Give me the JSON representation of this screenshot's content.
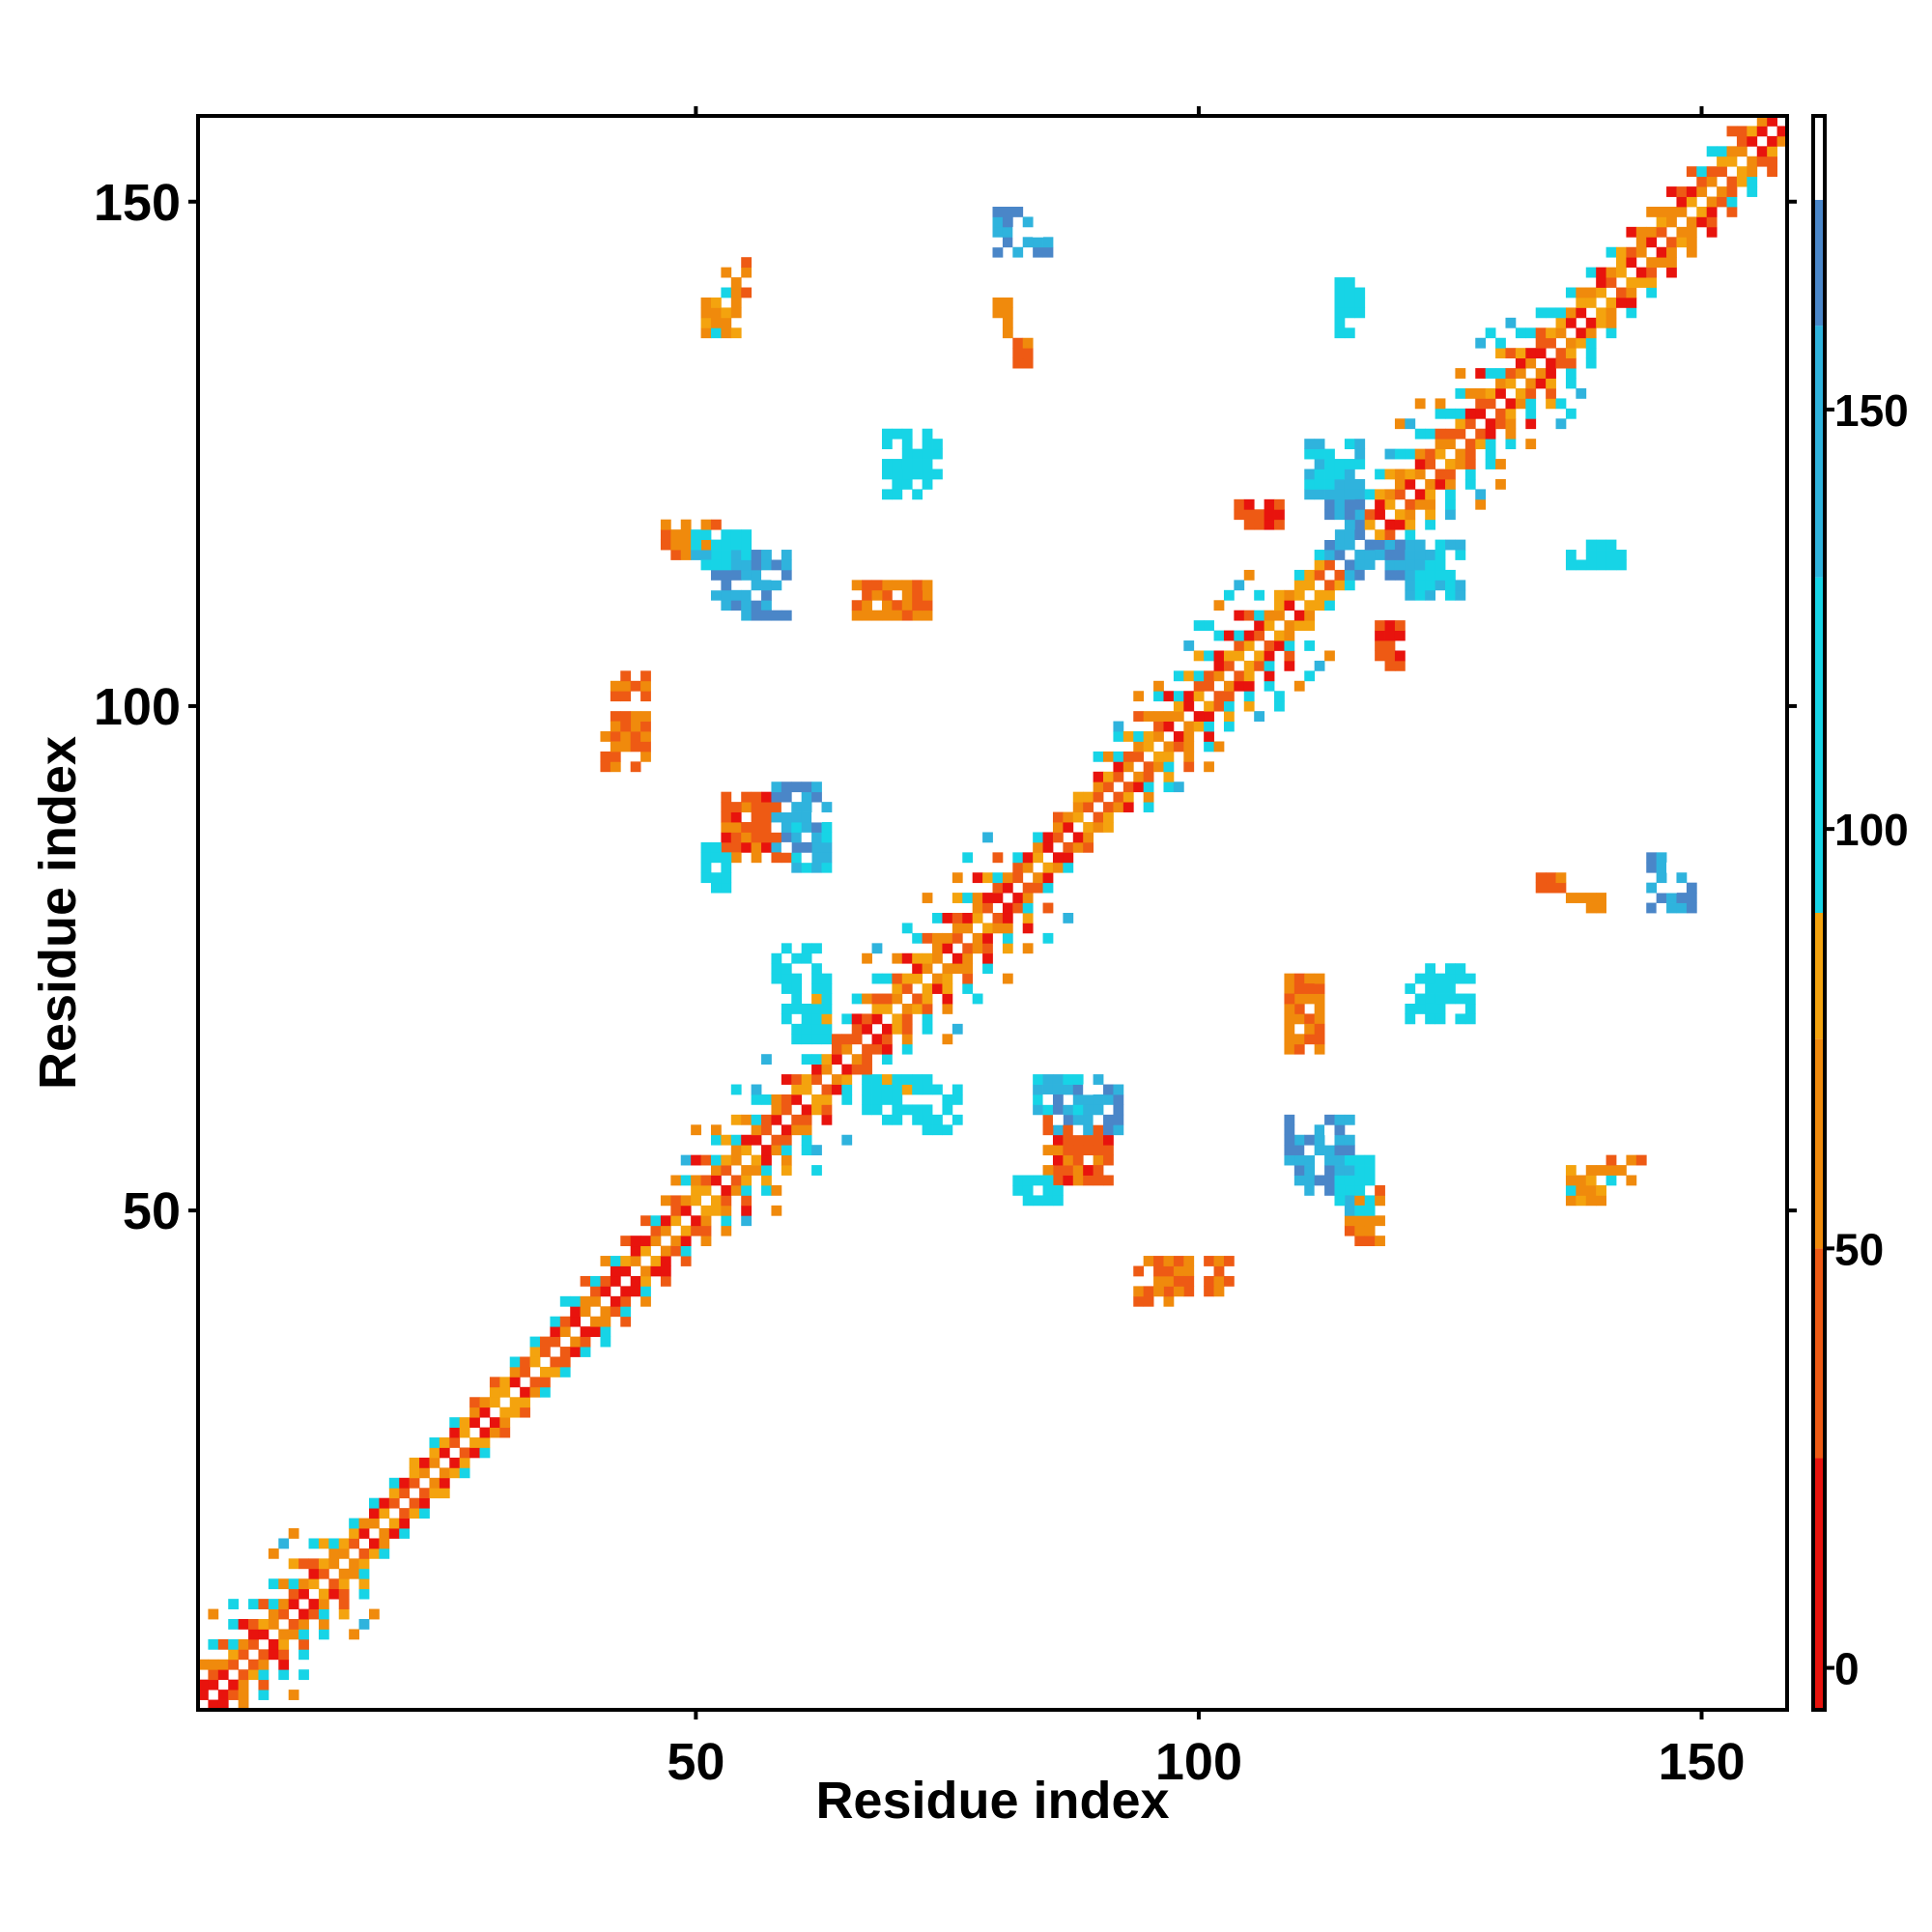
{
  "chart_data": {
    "type": "heatmap",
    "title": "",
    "xlabel": "Residue index",
    "ylabel": "Residue index",
    "xlim": [
      1,
      158
    ],
    "ylim": [
      1,
      158
    ],
    "xticks": [
      50,
      100,
      150
    ],
    "yticks": [
      50,
      100,
      150
    ],
    "colorbar": {
      "ticks": [
        0,
        50,
        100,
        150
      ],
      "range": [
        -5,
        185
      ],
      "bands": [
        {
          "from": -5,
          "to": 25,
          "color": "#e8130d"
        },
        {
          "from": 25,
          "to": 50,
          "color": "#ee5a14"
        },
        {
          "from": 50,
          "to": 75,
          "color": "#f08a0c"
        },
        {
          "from": 75,
          "to": 90,
          "color": "#f4a30e"
        },
        {
          "from": 90,
          "to": 130,
          "color": "#17d4e6"
        },
        {
          "from": 130,
          "to": 160,
          "color": "#2fb3dd"
        },
        {
          "from": 160,
          "to": 175,
          "color": "#4a86c8"
        },
        {
          "from": 175,
          "to": 185,
          "color": "#ffffff"
        }
      ]
    },
    "palette": {
      "red": "#e8130d",
      "orange_red": "#ee5a14",
      "orange": "#f08a0c",
      "amber": "#f4a30e",
      "cyan": "#17d4e6",
      "sky": "#2fb3dd",
      "steel": "#4a86c8"
    },
    "diagonal_bands": [
      {
        "from": 1,
        "to": 13,
        "width": 5
      },
      {
        "from": 13,
        "to": 36,
        "width": 3
      },
      {
        "from": 36,
        "to": 48,
        "width": 4
      },
      {
        "from": 48,
        "to": 57,
        "width": 5
      },
      {
        "from": 57,
        "to": 66,
        "width": 4
      },
      {
        "from": 66,
        "to": 80,
        "width": 5
      },
      {
        "from": 80,
        "to": 90,
        "width": 3
      },
      {
        "from": 90,
        "to": 106,
        "width": 5
      },
      {
        "from": 106,
        "to": 116,
        "width": 3
      },
      {
        "from": 116,
        "to": 134,
        "width": 5
      },
      {
        "from": 134,
        "to": 158,
        "width": 4
      }
    ],
    "off_diagonal_blocks": [
      {
        "x": [
          86,
          91
        ],
        "y": [
          53,
          58
        ],
        "value": 40
      },
      {
        "x": [
          84,
          90
        ],
        "y": [
          59,
          63
        ],
        "value": 130
      },
      {
        "x": [
          110,
          115
        ],
        "y": [
          52,
          57
        ],
        "value": 165
      },
      {
        "x": [
          115,
          118
        ],
        "y": [
          47,
          52
        ],
        "value": 60
      },
      {
        "x": [
          94,
          99
        ],
        "y": [
          41,
          45
        ],
        "value": 45
      },
      {
        "x": [
          109,
          112
        ],
        "y": [
          69,
          73
        ],
        "value": 60
      },
      {
        "x": [
          121,
          124
        ],
        "y": [
          69,
          73
        ],
        "value": 110
      },
      {
        "x": [
          53,
          59
        ],
        "y": [
          85,
          90
        ],
        "value": 40
      },
      {
        "x": [
          58,
          62
        ],
        "y": [
          85,
          92
        ],
        "value": 165
      },
      {
        "x": [
          51,
          53
        ],
        "y": [
          82,
          86
        ],
        "value": 110
      },
      {
        "x": [
          42,
          45
        ],
        "y": [
          96,
          103
        ],
        "value": 50
      },
      {
        "x": [
          55,
          59
        ],
        "y": [
          109,
          115
        ],
        "value": 165
      },
      {
        "x": [
          50,
          55
        ],
        "y": [
          114,
          117
        ],
        "value": 120
      },
      {
        "x": [
          66,
          73
        ],
        "y": [
          109,
          112
        ],
        "value": 50
      },
      {
        "x": [
          69,
          74
        ],
        "y": [
          123,
          127
        ],
        "value": 110
      },
      {
        "x": [
          53,
          55
        ],
        "y": [
          141,
          144
        ],
        "value": 60
      },
      {
        "x": [
          80,
          82
        ],
        "y": [
          145,
          149
        ],
        "value": 165
      },
      {
        "x": [
          80,
          81
        ],
        "y": [
          137,
          140
        ],
        "value": 60
      },
      {
        "x": [
          113,
          116
        ],
        "y": [
          114,
          120
        ],
        "value": 165
      },
      {
        "x": [
          118,
          120
        ],
        "y": [
          104,
          108
        ],
        "value": 30
      },
      {
        "x": [
          114,
          115
        ],
        "y": [
          139,
          142
        ],
        "value": 120
      },
      {
        "x": [
          145,
          148
        ],
        "y": [
          82,
          85
        ],
        "value": 160
      },
      {
        "x": [
          137,
          141
        ],
        "y": [
          51,
          54
        ],
        "value": 75
      },
      {
        "x": [
          137,
          141
        ],
        "y": [
          114,
          116
        ],
        "value": 110
      },
      {
        "x": [
          134,
          136
        ],
        "y": [
          82,
          83
        ],
        "value": 60
      },
      {
        "x": [
          73,
          76
        ],
        "y": [
          58,
          62
        ],
        "value": 105
      },
      {
        "x": [
          59,
          63
        ],
        "y": [
          67,
          73
        ],
        "value": 105
      },
      {
        "x": [
          121,
          126
        ],
        "y": [
          111,
          116
        ],
        "value": 130
      }
    ]
  }
}
